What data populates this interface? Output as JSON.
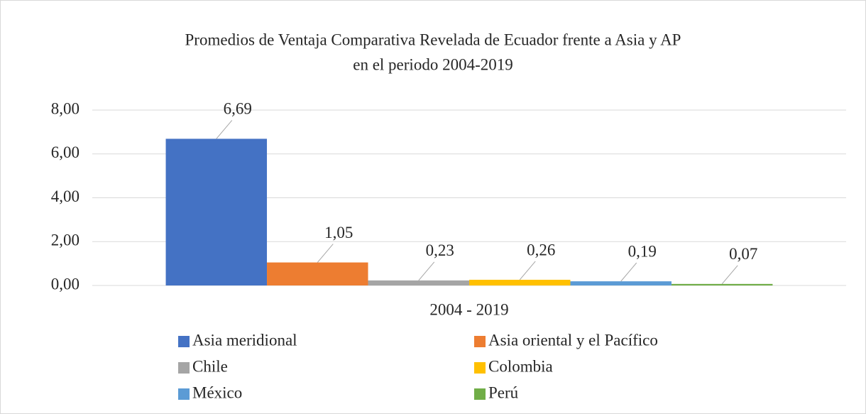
{
  "chart_data": {
    "type": "bar",
    "title": [
      "Promedios de Ventaja Comparativa Revelada de Ecuador frente a Asia y AP",
      "en el periodo 2004-2019"
    ],
    "categories": [
      "2004 - 2019"
    ],
    "series": [
      {
        "name": "Asia meridional",
        "color": "#4472c4",
        "values": [
          6.69
        ],
        "value_labels": [
          "6,69"
        ]
      },
      {
        "name": "Asia oriental y el Pacífico",
        "color": "#ed7d31",
        "values": [
          1.05
        ],
        "value_labels": [
          "1,05"
        ]
      },
      {
        "name": "Chile",
        "color": "#a5a5a5",
        "values": [
          0.23
        ],
        "value_labels": [
          "0,23"
        ]
      },
      {
        "name": "Colombia",
        "color": "#ffc000",
        "values": [
          0.26
        ],
        "value_labels": [
          "0,26"
        ]
      },
      {
        "name": "México",
        "color": "#5b9bd5",
        "values": [
          0.19
        ],
        "value_labels": [
          "0,19"
        ]
      },
      {
        "name": "Perú",
        "color": "#70ad47",
        "values": [
          0.07
        ],
        "value_labels": [
          "0,07"
        ]
      }
    ],
    "ylim": [
      0,
      8
    ],
    "yticks": [
      {
        "value": 0,
        "label": "0,00"
      },
      {
        "value": 2,
        "label": "2,00"
      },
      {
        "value": 4,
        "label": "4,00"
      },
      {
        "value": 6,
        "label": "6,00"
      },
      {
        "value": 8,
        "label": "8,00"
      }
    ],
    "grid": true,
    "legend": "bottom"
  }
}
